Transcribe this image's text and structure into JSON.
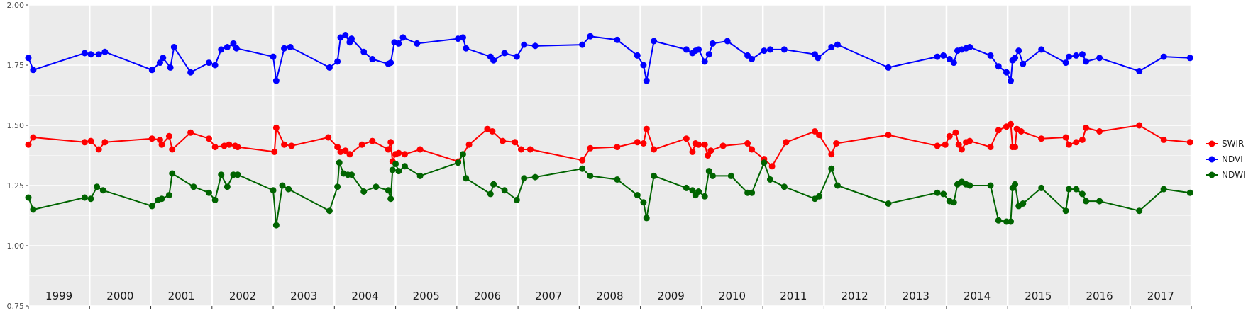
{
  "chart_data": {
    "type": "line",
    "title": "",
    "xlabel": "",
    "ylabel": "",
    "ylim": [
      0.75,
      2.0
    ],
    "xlim": [
      1999.0,
      2018.0
    ],
    "grid": true,
    "legend_position": "right",
    "y_ticks": [
      "0.75",
      "1.00",
      "1.25",
      "1.50",
      "1.75",
      "2.00"
    ],
    "year_labels": [
      "1999",
      "2000",
      "2001",
      "2002",
      "2003",
      "2004",
      "2005",
      "2006",
      "2007",
      "2008",
      "2009",
      "2010",
      "2011",
      "2012",
      "2013",
      "2014",
      "2015",
      "2016",
      "2017"
    ],
    "series": [
      {
        "name": "SWIR",
        "color": "#ff0000",
        "points": [
          [
            1999.0,
            1.42
          ],
          [
            1999.08,
            1.45
          ],
          [
            1999.92,
            1.43
          ],
          [
            2000.02,
            1.435
          ],
          [
            2000.15,
            1.4
          ],
          [
            2000.25,
            1.43
          ],
          [
            2001.02,
            1.445
          ],
          [
            2001.15,
            1.44
          ],
          [
            2001.18,
            1.42
          ],
          [
            2001.3,
            1.455
          ],
          [
            2001.35,
            1.4
          ],
          [
            2001.65,
            1.47
          ],
          [
            2001.95,
            1.445
          ],
          [
            2002.05,
            1.41
          ],
          [
            2002.2,
            1.415
          ],
          [
            2002.28,
            1.42
          ],
          [
            2002.38,
            1.415
          ],
          [
            2002.42,
            1.41
          ],
          [
            2003.02,
            1.39
          ],
          [
            2003.05,
            1.49
          ],
          [
            2003.18,
            1.42
          ],
          [
            2003.3,
            1.415
          ],
          [
            2003.9,
            1.45
          ],
          [
            2004.05,
            1.41
          ],
          [
            2004.1,
            1.39
          ],
          [
            2004.18,
            1.395
          ],
          [
            2004.25,
            1.38
          ],
          [
            2004.45,
            1.42
          ],
          [
            2004.62,
            1.435
          ],
          [
            2004.88,
            1.4
          ],
          [
            2004.92,
            1.43
          ],
          [
            2004.95,
            1.35
          ],
          [
            2005.0,
            1.38
          ],
          [
            2005.05,
            1.385
          ],
          [
            2005.15,
            1.38
          ],
          [
            2005.4,
            1.4
          ],
          [
            2006.02,
            1.35
          ],
          [
            2006.2,
            1.42
          ],
          [
            2006.5,
            1.485
          ],
          [
            2006.58,
            1.475
          ],
          [
            2006.75,
            1.435
          ],
          [
            2006.95,
            1.43
          ],
          [
            2007.05,
            1.4
          ],
          [
            2007.2,
            1.4
          ],
          [
            2008.05,
            1.355
          ],
          [
            2008.18,
            1.405
          ],
          [
            2008.62,
            1.41
          ],
          [
            2008.95,
            1.43
          ],
          [
            2009.05,
            1.425
          ],
          [
            2009.1,
            1.485
          ],
          [
            2009.22,
            1.4
          ],
          [
            2009.75,
            1.445
          ],
          [
            2009.85,
            1.39
          ],
          [
            2009.9,
            1.425
          ],
          [
            2009.95,
            1.42
          ],
          [
            2010.05,
            1.42
          ],
          [
            2010.1,
            1.375
          ],
          [
            2010.15,
            1.395
          ],
          [
            2010.35,
            1.415
          ],
          [
            2010.75,
            1.425
          ],
          [
            2010.82,
            1.4
          ],
          [
            2011.02,
            1.36
          ],
          [
            2011.15,
            1.33
          ],
          [
            2011.38,
            1.43
          ],
          [
            2011.85,
            1.475
          ],
          [
            2011.92,
            1.46
          ],
          [
            2012.12,
            1.38
          ],
          [
            2012.2,
            1.425
          ],
          [
            2013.05,
            1.46
          ],
          [
            2013.85,
            1.415
          ],
          [
            2013.98,
            1.42
          ],
          [
            2014.05,
            1.455
          ],
          [
            2014.15,
            1.47
          ],
          [
            2014.2,
            1.42
          ],
          [
            2014.25,
            1.4
          ],
          [
            2014.32,
            1.43
          ],
          [
            2014.38,
            1.435
          ],
          [
            2014.72,
            1.41
          ],
          [
            2014.85,
            1.48
          ],
          [
            2014.98,
            1.495
          ],
          [
            2015.05,
            1.505
          ],
          [
            2015.08,
            1.41
          ],
          [
            2015.12,
            1.41
          ],
          [
            2015.15,
            1.485
          ],
          [
            2015.22,
            1.475
          ],
          [
            2015.55,
            1.445
          ],
          [
            2015.95,
            1.45
          ],
          [
            2016.0,
            1.42
          ],
          [
            2016.12,
            1.43
          ],
          [
            2016.22,
            1.44
          ],
          [
            2016.28,
            1.49
          ],
          [
            2016.5,
            1.475
          ],
          [
            2017.15,
            1.5
          ],
          [
            2017.55,
            1.44
          ],
          [
            2017.98,
            1.43
          ]
        ]
      },
      {
        "name": "NDVI",
        "color": "#0000ff",
        "points": [
          [
            1999.0,
            1.78
          ],
          [
            1999.08,
            1.73
          ],
          [
            1999.92,
            1.8
          ],
          [
            2000.02,
            1.795
          ],
          [
            2000.15,
            1.795
          ],
          [
            2000.25,
            1.805
          ],
          [
            2001.02,
            1.73
          ],
          [
            2001.15,
            1.76
          ],
          [
            2001.2,
            1.78
          ],
          [
            2001.32,
            1.74
          ],
          [
            2001.38,
            1.825
          ],
          [
            2001.65,
            1.72
          ],
          [
            2001.95,
            1.76
          ],
          [
            2002.05,
            1.75
          ],
          [
            2002.15,
            1.815
          ],
          [
            2002.25,
            1.825
          ],
          [
            2002.35,
            1.84
          ],
          [
            2002.4,
            1.82
          ],
          [
            2003.0,
            1.785
          ],
          [
            2003.05,
            1.685
          ],
          [
            2003.18,
            1.82
          ],
          [
            2003.28,
            1.825
          ],
          [
            2003.92,
            1.74
          ],
          [
            2004.05,
            1.765
          ],
          [
            2004.1,
            1.865
          ],
          [
            2004.18,
            1.875
          ],
          [
            2004.25,
            1.845
          ],
          [
            2004.28,
            1.86
          ],
          [
            2004.48,
            1.805
          ],
          [
            2004.62,
            1.775
          ],
          [
            2004.88,
            1.755
          ],
          [
            2004.92,
            1.76
          ],
          [
            2004.98,
            1.845
          ],
          [
            2005.05,
            1.84
          ],
          [
            2005.12,
            1.865
          ],
          [
            2005.35,
            1.84
          ],
          [
            2006.02,
            1.86
          ],
          [
            2006.1,
            1.865
          ],
          [
            2006.15,
            1.82
          ],
          [
            2006.55,
            1.785
          ],
          [
            2006.6,
            1.77
          ],
          [
            2006.78,
            1.8
          ],
          [
            2006.98,
            1.785
          ],
          [
            2007.1,
            1.835
          ],
          [
            2007.28,
            1.83
          ],
          [
            2008.05,
            1.835
          ],
          [
            2008.18,
            1.87
          ],
          [
            2008.62,
            1.855
          ],
          [
            2008.95,
            1.79
          ],
          [
            2009.05,
            1.75
          ],
          [
            2009.1,
            1.685
          ],
          [
            2009.22,
            1.85
          ],
          [
            2009.75,
            1.815
          ],
          [
            2009.85,
            1.8
          ],
          [
            2009.9,
            1.81
          ],
          [
            2009.95,
            1.815
          ],
          [
            2010.05,
            1.765
          ],
          [
            2010.12,
            1.795
          ],
          [
            2010.18,
            1.84
          ],
          [
            2010.42,
            1.85
          ],
          [
            2010.75,
            1.79
          ],
          [
            2010.82,
            1.775
          ],
          [
            2011.02,
            1.81
          ],
          [
            2011.12,
            1.815
          ],
          [
            2011.35,
            1.815
          ],
          [
            2011.85,
            1.795
          ],
          [
            2011.9,
            1.78
          ],
          [
            2012.12,
            1.825
          ],
          [
            2012.22,
            1.835
          ],
          [
            2013.05,
            1.74
          ],
          [
            2013.85,
            1.785
          ],
          [
            2013.95,
            1.79
          ],
          [
            2014.05,
            1.775
          ],
          [
            2014.12,
            1.76
          ],
          [
            2014.18,
            1.81
          ],
          [
            2014.25,
            1.815
          ],
          [
            2014.32,
            1.82
          ],
          [
            2014.38,
            1.825
          ],
          [
            2014.72,
            1.79
          ],
          [
            2014.85,
            1.745
          ],
          [
            2014.98,
            1.72
          ],
          [
            2015.05,
            1.685
          ],
          [
            2015.08,
            1.77
          ],
          [
            2015.12,
            1.78
          ],
          [
            2015.18,
            1.81
          ],
          [
            2015.25,
            1.755
          ],
          [
            2015.55,
            1.815
          ],
          [
            2015.95,
            1.76
          ],
          [
            2016.0,
            1.785
          ],
          [
            2016.12,
            1.79
          ],
          [
            2016.22,
            1.795
          ],
          [
            2016.28,
            1.765
          ],
          [
            2016.5,
            1.78
          ],
          [
            2017.15,
            1.725
          ],
          [
            2017.55,
            1.785
          ],
          [
            2017.98,
            1.78
          ]
        ]
      },
      {
        "name": "NDWI",
        "color": "#006400",
        "points": [
          [
            1999.0,
            1.2
          ],
          [
            1999.08,
            1.15
          ],
          [
            1999.92,
            1.2
          ],
          [
            2000.02,
            1.195
          ],
          [
            2000.12,
            1.245
          ],
          [
            2000.22,
            1.23
          ],
          [
            2001.02,
            1.165
          ],
          [
            2001.12,
            1.19
          ],
          [
            2001.18,
            1.195
          ],
          [
            2001.3,
            1.21
          ],
          [
            2001.35,
            1.3
          ],
          [
            2001.7,
            1.245
          ],
          [
            2001.95,
            1.22
          ],
          [
            2002.05,
            1.19
          ],
          [
            2002.15,
            1.295
          ],
          [
            2002.25,
            1.245
          ],
          [
            2002.35,
            1.295
          ],
          [
            2002.42,
            1.295
          ],
          [
            2003.0,
            1.23
          ],
          [
            2003.05,
            1.085
          ],
          [
            2003.15,
            1.25
          ],
          [
            2003.25,
            1.235
          ],
          [
            2003.92,
            1.145
          ],
          [
            2004.05,
            1.245
          ],
          [
            2004.08,
            1.345
          ],
          [
            2004.15,
            1.3
          ],
          [
            2004.22,
            1.295
          ],
          [
            2004.28,
            1.295
          ],
          [
            2004.48,
            1.225
          ],
          [
            2004.68,
            1.245
          ],
          [
            2004.88,
            1.23
          ],
          [
            2004.92,
            1.195
          ],
          [
            2004.95,
            1.315
          ],
          [
            2005.0,
            1.34
          ],
          [
            2005.05,
            1.31
          ],
          [
            2005.15,
            1.33
          ],
          [
            2005.4,
            1.29
          ],
          [
            2006.02,
            1.345
          ],
          [
            2006.1,
            1.38
          ],
          [
            2006.15,
            1.28
          ],
          [
            2006.55,
            1.215
          ],
          [
            2006.6,
            1.255
          ],
          [
            2006.78,
            1.23
          ],
          [
            2006.98,
            1.19
          ],
          [
            2007.1,
            1.28
          ],
          [
            2007.28,
            1.285
          ],
          [
            2008.05,
            1.32
          ],
          [
            2008.18,
            1.29
          ],
          [
            2008.62,
            1.275
          ],
          [
            2008.95,
            1.21
          ],
          [
            2009.05,
            1.18
          ],
          [
            2009.1,
            1.115
          ],
          [
            2009.22,
            1.29
          ],
          [
            2009.75,
            1.24
          ],
          [
            2009.85,
            1.23
          ],
          [
            2009.9,
            1.21
          ],
          [
            2009.95,
            1.225
          ],
          [
            2010.05,
            1.205
          ],
          [
            2010.12,
            1.31
          ],
          [
            2010.18,
            1.29
          ],
          [
            2010.48,
            1.29
          ],
          [
            2010.75,
            1.22
          ],
          [
            2010.82,
            1.22
          ],
          [
            2011.02,
            1.345
          ],
          [
            2011.12,
            1.275
          ],
          [
            2011.35,
            1.245
          ],
          [
            2011.85,
            1.195
          ],
          [
            2011.92,
            1.205
          ],
          [
            2012.12,
            1.32
          ],
          [
            2012.22,
            1.25
          ],
          [
            2013.05,
            1.175
          ],
          [
            2013.85,
            1.22
          ],
          [
            2013.95,
            1.215
          ],
          [
            2014.05,
            1.185
          ],
          [
            2014.12,
            1.18
          ],
          [
            2014.18,
            1.255
          ],
          [
            2014.25,
            1.265
          ],
          [
            2014.32,
            1.255
          ],
          [
            2014.38,
            1.25
          ],
          [
            2014.72,
            1.25
          ],
          [
            2014.85,
            1.105
          ],
          [
            2014.98,
            1.1
          ],
          [
            2015.05,
            1.1
          ],
          [
            2015.08,
            1.24
          ],
          [
            2015.12,
            1.255
          ],
          [
            2015.18,
            1.165
          ],
          [
            2015.25,
            1.175
          ],
          [
            2015.55,
            1.24
          ],
          [
            2015.95,
            1.145
          ],
          [
            2016.0,
            1.235
          ],
          [
            2016.12,
            1.235
          ],
          [
            2016.22,
            1.215
          ],
          [
            2016.28,
            1.185
          ],
          [
            2016.5,
            1.185
          ],
          [
            2017.15,
            1.145
          ],
          [
            2017.55,
            1.235
          ],
          [
            2017.98,
            1.22
          ]
        ]
      }
    ]
  }
}
